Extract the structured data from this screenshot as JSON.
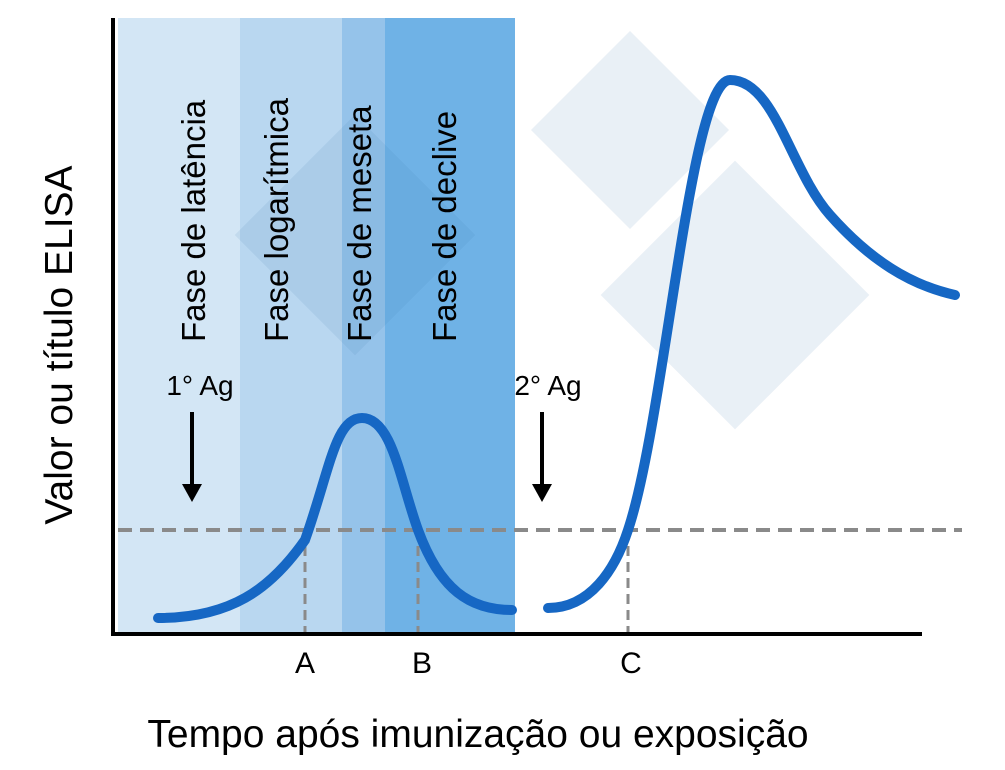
{
  "axes": {
    "y_label": "Valor ou título ELISA",
    "x_label": "Tempo após imunização ou exposição"
  },
  "phases": [
    {
      "label": "Fase de latência"
    },
    {
      "label": "Fase logarítmica"
    },
    {
      "label": "Fase de meseta"
    },
    {
      "label": "Fase de declive"
    }
  ],
  "antigens": [
    {
      "label": "1° Ag"
    },
    {
      "label": "2° Ag"
    }
  ],
  "markers": [
    {
      "label": "A"
    },
    {
      "label": "B"
    },
    {
      "label": "C"
    }
  ]
}
